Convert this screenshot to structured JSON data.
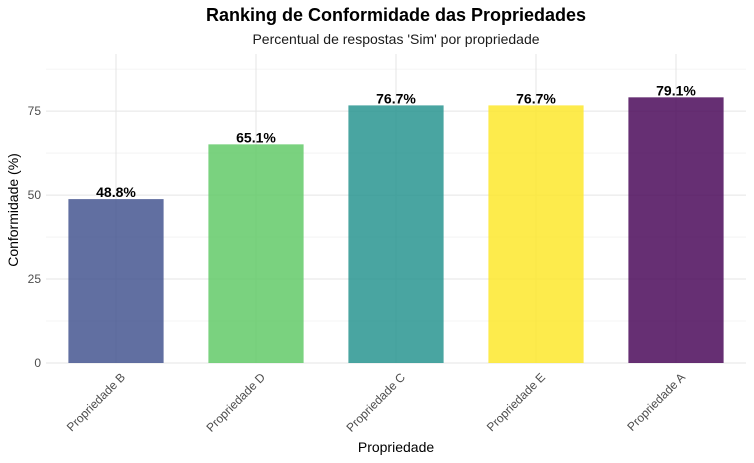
{
  "chart_data": {
    "type": "bar",
    "title": "Ranking de Conformidade das Propriedades",
    "subtitle": "Percentual de respostas 'Sim' por propriedade",
    "xlabel": "Propriedade",
    "ylabel": "Conformidade (%)",
    "categories": [
      "Propriedade B",
      "Propriedade D",
      "Propriedade C",
      "Propriedade E",
      "Propriedade A"
    ],
    "values": [
      48.8,
      65.1,
      76.7,
      76.7,
      79.1
    ],
    "data_labels": [
      "48.8%",
      "65.1%",
      "76.7%",
      "76.7%",
      "79.1%"
    ],
    "colors": [
      "#3E4F8C",
      "#5DC863",
      "#21918C",
      "#FDE725",
      "#440154"
    ],
    "ylim": [
      0,
      92
    ],
    "yticks": [
      0,
      25,
      50,
      75
    ],
    "grid": true,
    "legend": "none"
  }
}
